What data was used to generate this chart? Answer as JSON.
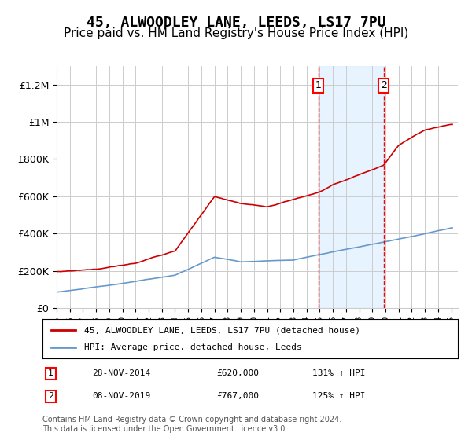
{
  "title": "45, ALWOODLEY LANE, LEEDS, LS17 7PU",
  "subtitle": "Price paid vs. HM Land Registry's House Price Index (HPI)",
  "title_fontsize": 13,
  "subtitle_fontsize": 11,
  "xlabel": "",
  "ylabel": "",
  "ylim": [
    0,
    1300000
  ],
  "yticks": [
    0,
    200000,
    400000,
    600000,
    800000,
    1000000,
    1200000
  ],
  "ytick_labels": [
    "£0",
    "£200K",
    "£400K",
    "£600K",
    "£800K",
    "£1M",
    "£1.2M"
  ],
  "x_start_year": 1995,
  "x_end_year": 2025,
  "line1_color": "#cc0000",
  "line2_color": "#6699cc",
  "line1_label": "45, ALWOODLEY LANE, LEEDS, LS17 7PU (detached house)",
  "line2_label": "HPI: Average price, detached house, Leeds",
  "marker1_year": 2014.91,
  "marker1_value": 620000,
  "marker1_label": "1",
  "marker1_date": "28-NOV-2014",
  "marker1_price": "£620,000",
  "marker1_hpi": "131% ↑ HPI",
  "marker2_year": 2019.86,
  "marker2_value": 767000,
  "marker2_label": "2",
  "marker2_date": "08-NOV-2019",
  "marker2_price": "£767,000",
  "marker2_hpi": "125% ↑ HPI",
  "bg_color": "#ffffff",
  "grid_color": "#cccccc",
  "shade_color": "#ddeeff",
  "footer_text": "Contains HM Land Registry data © Crown copyright and database right 2024.\nThis data is licensed under the Open Government Licence v3.0."
}
